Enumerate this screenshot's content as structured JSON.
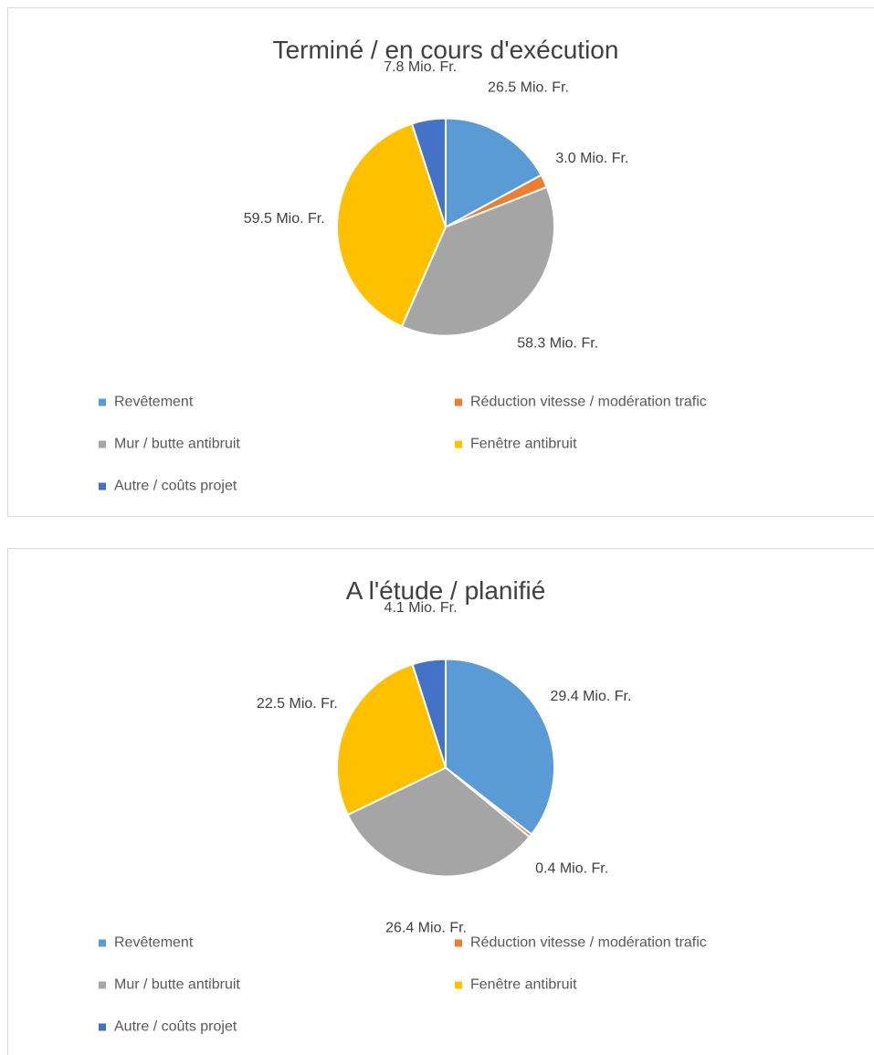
{
  "chart_data": [
    {
      "type": "pie",
      "title": "Terminé / en cours d'exécution",
      "categories": [
        "Revêtement",
        "Réduction vitesse / modération trafic",
        "Mur / butte antibruit",
        "Fenêtre antibruit",
        "Autre / coûts projet"
      ],
      "values": [
        26.5,
        3.0,
        58.3,
        59.5,
        7.8
      ],
      "value_labels": [
        "26.5 Mio. Fr.",
        "3.0 Mio. Fr.",
        "58.3 Mio. Fr.",
        "59.5 Mio. Fr.",
        "7.8 Mio. Fr."
      ],
      "colors": [
        "#5b9bd5",
        "#ed7d31",
        "#a5a5a5",
        "#ffc000",
        "#4472c4"
      ],
      "legend": "bottom"
    },
    {
      "type": "pie",
      "title": "A l'étude / planifié",
      "categories": [
        "Revêtement",
        "Réduction vitesse / modération trafic",
        "Mur / butte antibruit",
        "Fenêtre antibruit",
        "Autre / coûts projet"
      ],
      "values": [
        29.4,
        0.4,
        26.4,
        22.5,
        4.1
      ],
      "value_labels": [
        "29.4 Mio. Fr.",
        "0.4 Mio. Fr.",
        "26.4 Mio. Fr.",
        "22.5 Mio. Fr.",
        "4.1 Mio. Fr."
      ],
      "colors": [
        "#5b9bd5",
        "#ed7d31",
        "#a5a5a5",
        "#ffc000",
        "#4472c4"
      ],
      "legend": "bottom"
    }
  ]
}
